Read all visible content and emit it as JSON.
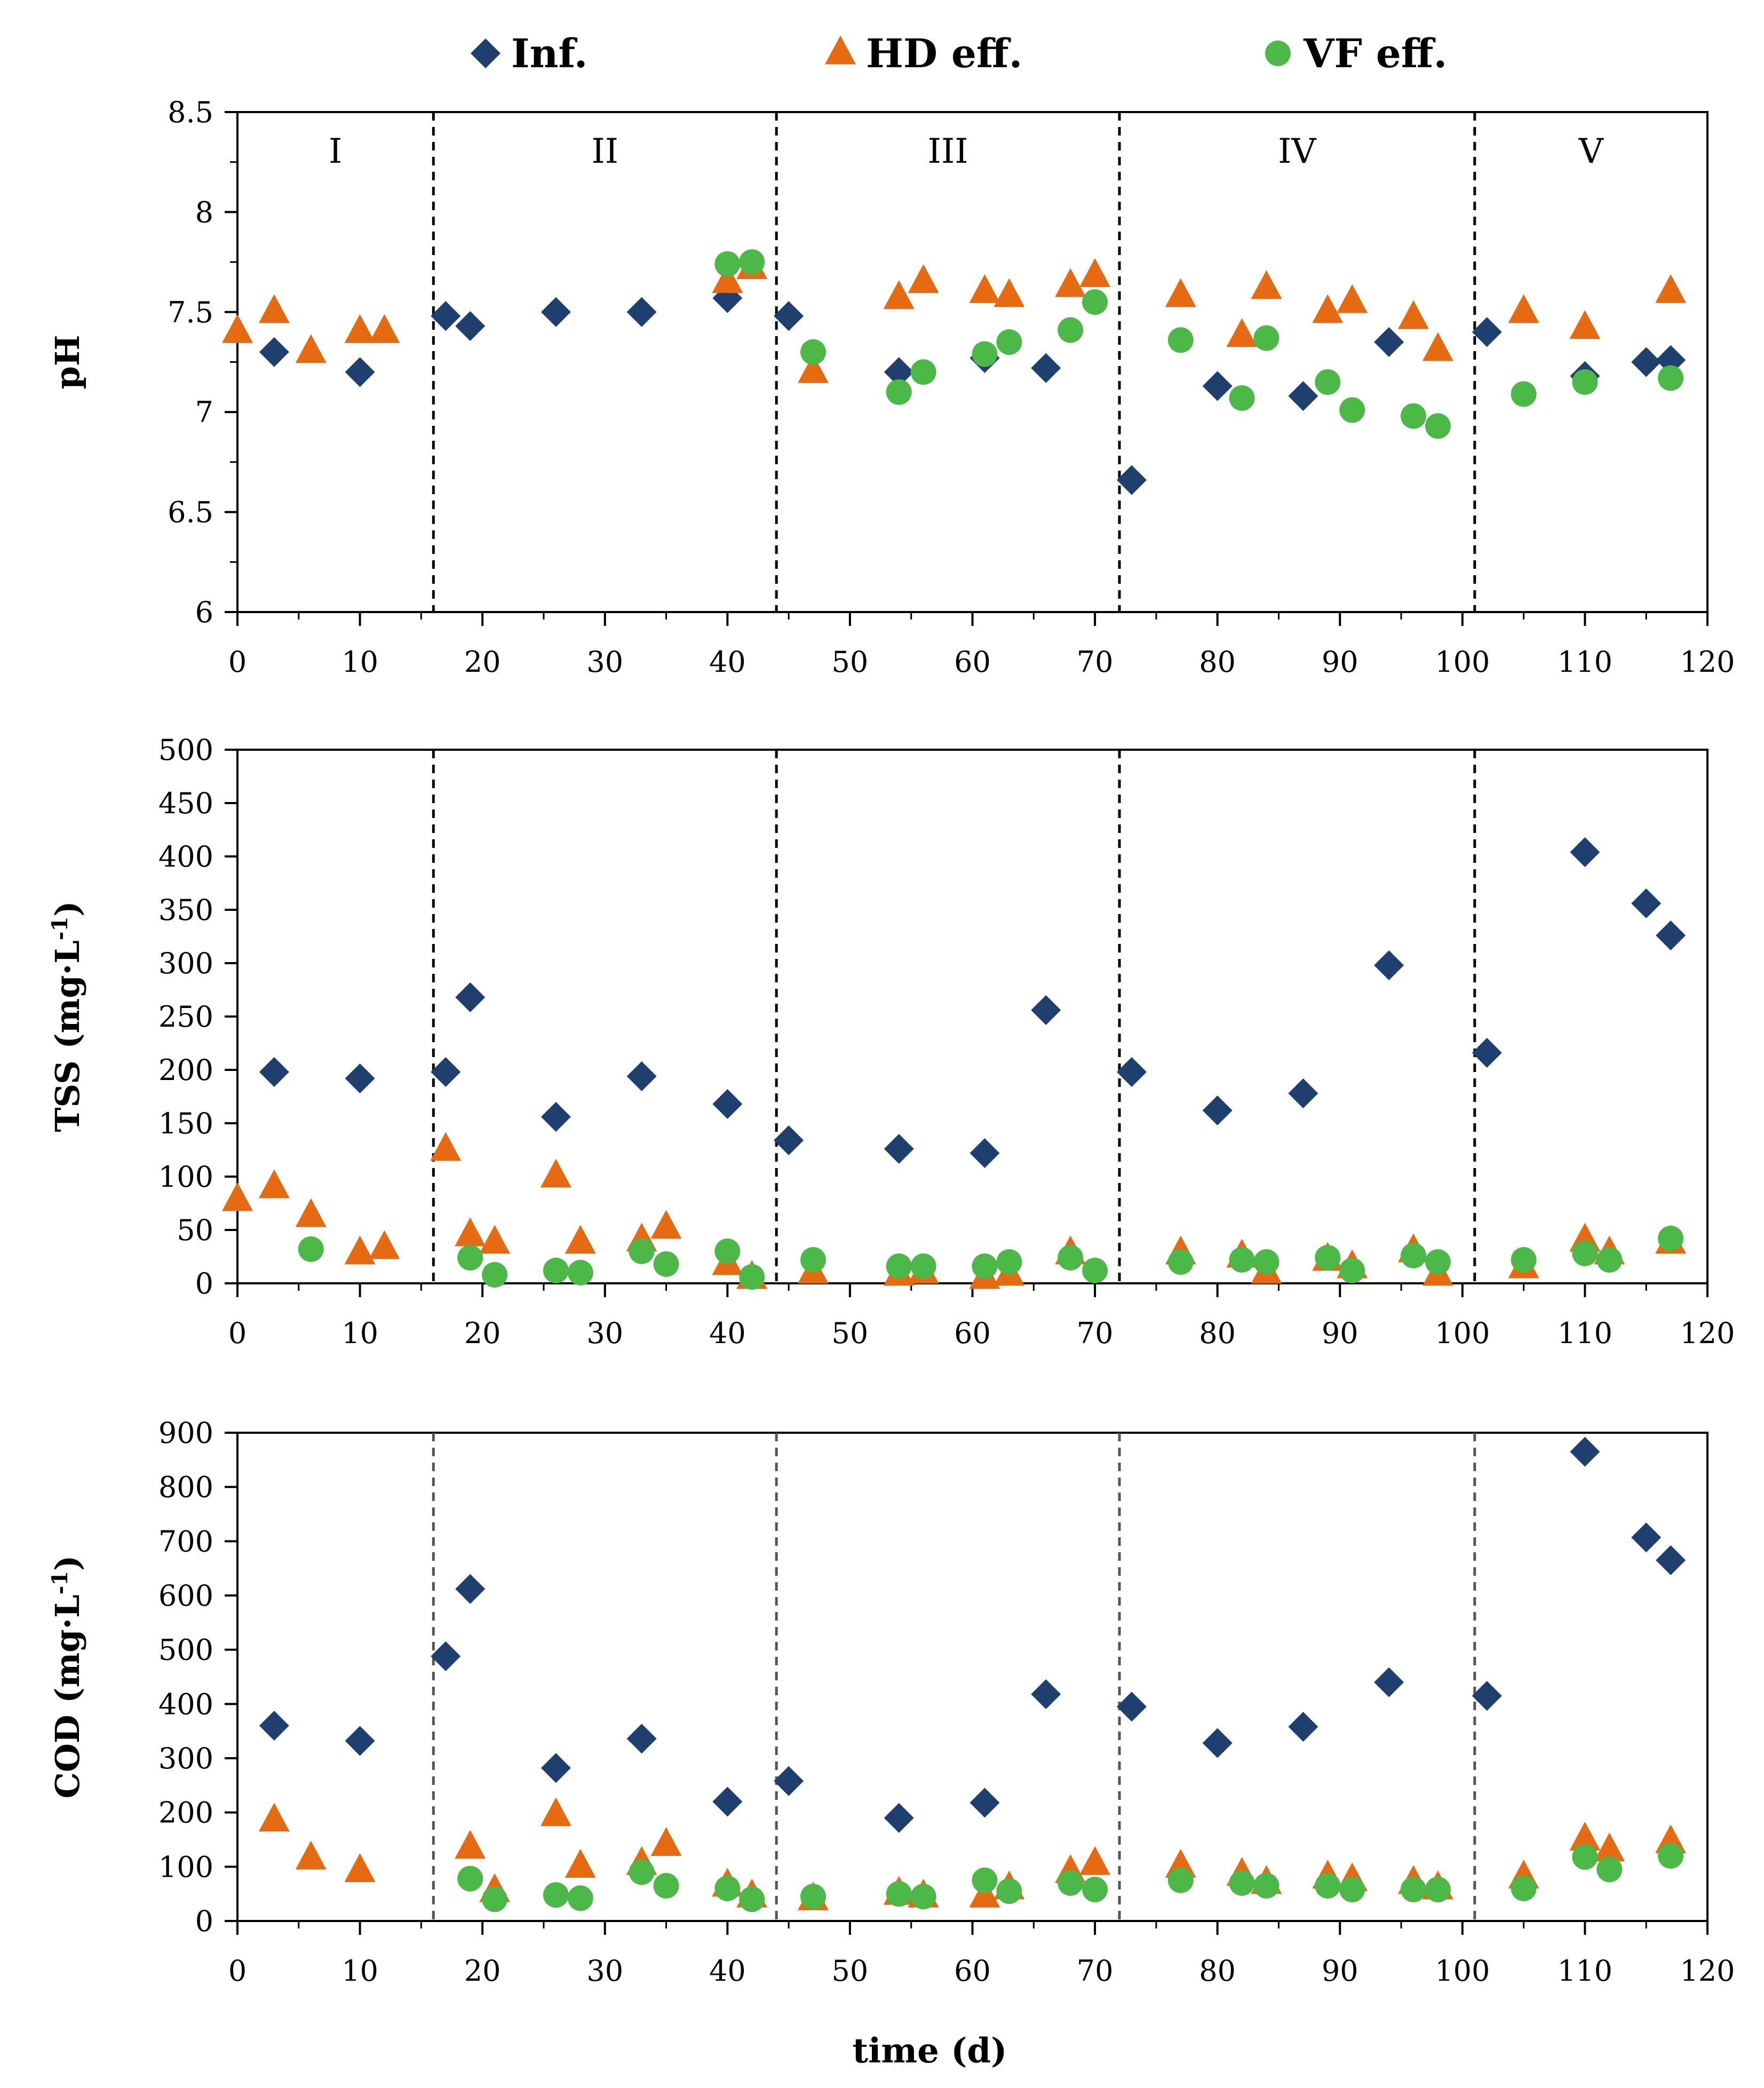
{
  "legend": [
    {
      "key": "inf",
      "label": "Inf.",
      "color": "#1f3f6e",
      "marker": "diamond"
    },
    {
      "key": "hd",
      "label": "HD eff.",
      "color": "#e66a12",
      "marker": "triangle"
    },
    {
      "key": "vf",
      "label": "VF eff.",
      "color": "#4cb848",
      "marker": "circle"
    }
  ],
  "shared_x_label": "time (d)",
  "chart_data": [
    {
      "type": "scatter",
      "ylabel_main": "pH",
      "ylabel_sup": "",
      "ylabel_tail": "",
      "xlim": [
        0,
        120
      ],
      "ylim": [
        6,
        8.5
      ],
      "xticks": [
        "0",
        "10",
        "20",
        "30",
        "40",
        "50",
        "60",
        "70",
        "80",
        "90",
        "100",
        "110",
        "120"
      ],
      "yticks": [
        "6",
        "6.5",
        "7",
        "7.5",
        "8",
        "8.5"
      ],
      "phase_boundaries": [
        16,
        44,
        72,
        101
      ],
      "phase_labels": [
        "I",
        "II",
        "III",
        "IV",
        "V"
      ],
      "series": [
        {
          "name": "Inf.",
          "x": [
            3,
            10,
            17,
            19,
            26,
            33,
            40,
            45,
            54,
            61,
            66,
            73,
            80,
            87,
            94,
            102,
            110,
            115,
            117
          ],
          "y": [
            7.3,
            7.2,
            7.48,
            7.43,
            7.5,
            7.5,
            7.57,
            7.48,
            7.2,
            7.27,
            7.22,
            6.66,
            7.13,
            7.08,
            7.35,
            7.4,
            7.18,
            7.25,
            7.26
          ]
        },
        {
          "name": "HD eff.",
          "x": [
            0,
            3,
            6,
            10,
            12,
            40,
            42,
            47,
            54,
            56,
            61,
            63,
            68,
            70,
            77,
            82,
            84,
            89,
            91,
            96,
            98,
            105,
            110,
            117
          ],
          "y": [
            7.4,
            7.5,
            7.3,
            7.4,
            7.4,
            7.65,
            7.72,
            7.2,
            7.57,
            7.65,
            7.6,
            7.58,
            7.63,
            7.68,
            7.58,
            7.38,
            7.62,
            7.5,
            7.55,
            7.47,
            7.31,
            7.5,
            7.42,
            7.6
          ]
        },
        {
          "name": "VF eff.",
          "x": [
            40,
            42,
            47,
            54,
            56,
            61,
            63,
            68,
            70,
            77,
            82,
            84,
            89,
            91,
            96,
            98,
            105,
            110,
            117
          ],
          "y": [
            7.74,
            7.75,
            7.3,
            7.1,
            7.2,
            7.29,
            7.35,
            7.41,
            7.55,
            7.36,
            7.07,
            7.37,
            7.15,
            7.01,
            6.98,
            6.93,
            7.09,
            7.15,
            7.17
          ]
        }
      ]
    },
    {
      "type": "scatter",
      "ylabel_main": "TSS (mg·L",
      "ylabel_sup": "-1",
      "ylabel_tail": ")",
      "xlim": [
        0,
        120
      ],
      "ylim": [
        0,
        500
      ],
      "xticks": [
        "0",
        "10",
        "20",
        "30",
        "40",
        "50",
        "60",
        "70",
        "80",
        "90",
        "100",
        "110",
        "120"
      ],
      "yticks": [
        "0",
        "50",
        "100",
        "150",
        "200",
        "250",
        "300",
        "350",
        "400",
        "450",
        "500"
      ],
      "phase_boundaries": [
        16,
        44,
        72,
        101
      ],
      "phase_labels": [],
      "series": [
        {
          "name": "Inf.",
          "x": [
            3,
            10,
            17,
            19,
            26,
            33,
            40,
            45,
            54,
            61,
            66,
            73,
            80,
            87,
            94,
            102,
            110,
            115,
            117
          ],
          "y": [
            198,
            192,
            198,
            268,
            156,
            194,
            168,
            134,
            126,
            122,
            256,
            198,
            162,
            178,
            298,
            216,
            404,
            356,
            326
          ]
        },
        {
          "name": "HD eff.",
          "x": [
            0,
            3,
            6,
            10,
            12,
            17,
            19,
            21,
            26,
            28,
            33,
            35,
            40,
            42,
            47,
            54,
            56,
            61,
            63,
            68,
            77,
            82,
            84,
            89,
            91,
            96,
            98,
            105,
            110,
            112,
            117
          ],
          "y": [
            78,
            90,
            63,
            28,
            33,
            125,
            45,
            38,
            100,
            38,
            40,
            52,
            18,
            5,
            10,
            8,
            10,
            5,
            8,
            28,
            28,
            25,
            10,
            22,
            15,
            30,
            8,
            15,
            40,
            28,
            38
          ]
        },
        {
          "name": "VF eff.",
          "x": [
            6,
            19,
            21,
            26,
            28,
            33,
            35,
            40,
            42,
            47,
            54,
            56,
            61,
            63,
            68,
            70,
            77,
            82,
            84,
            89,
            91,
            96,
            98,
            105,
            110,
            112,
            117
          ],
          "y": [
            32,
            24,
            8,
            12,
            10,
            30,
            18,
            30,
            6,
            22,
            16,
            16,
            16,
            20,
            24,
            12,
            20,
            22,
            20,
            24,
            12,
            26,
            20,
            22,
            28,
            22,
            42
          ]
        }
      ]
    },
    {
      "type": "scatter",
      "ylabel_main": "COD (mg·L",
      "ylabel_sup": "-1",
      "ylabel_tail": ")",
      "xlim": [
        0,
        120
      ],
      "ylim": [
        0,
        900
      ],
      "xticks": [
        "0",
        "10",
        "20",
        "30",
        "40",
        "50",
        "60",
        "70",
        "80",
        "90",
        "100",
        "110",
        "120"
      ],
      "yticks": [
        "0",
        "100",
        "200",
        "300",
        "400",
        "500",
        "600",
        "700",
        "800",
        "900"
      ],
      "phase_boundaries": [
        16,
        44,
        72,
        101
      ],
      "phase_labels": [],
      "series": [
        {
          "name": "Inf.",
          "x": [
            3,
            10,
            17,
            19,
            26,
            33,
            40,
            45,
            54,
            61,
            66,
            73,
            80,
            87,
            94,
            102,
            110,
            115,
            117
          ],
          "y": [
            360,
            332,
            488,
            612,
            282,
            336,
            220,
            258,
            190,
            218,
            418,
            395,
            328,
            358,
            440,
            415,
            865,
            707,
            665
          ]
        },
        {
          "name": "HD eff.",
          "x": [
            3,
            6,
            10,
            19,
            21,
            26,
            28,
            33,
            35,
            40,
            42,
            47,
            54,
            56,
            61,
            63,
            68,
            70,
            77,
            82,
            84,
            89,
            91,
            96,
            98,
            105,
            110,
            112,
            117
          ],
          "y": [
            185,
            115,
            92,
            135,
            55,
            195,
            100,
            105,
            140,
            65,
            45,
            40,
            50,
            45,
            45,
            60,
            90,
            105,
            100,
            85,
            70,
            80,
            75,
            70,
            60,
            80,
            150,
            130,
            145
          ]
        },
        {
          "name": "VF eff.",
          "x": [
            19,
            21,
            26,
            28,
            33,
            35,
            40,
            42,
            47,
            54,
            56,
            61,
            63,
            68,
            70,
            77,
            82,
            84,
            89,
            91,
            96,
            98,
            105,
            110,
            112,
            117
          ],
          "y": [
            78,
            40,
            48,
            42,
            90,
            65,
            60,
            40,
            45,
            50,
            45,
            75,
            55,
            70,
            58,
            75,
            70,
            65,
            65,
            58,
            58,
            58,
            60,
            118,
            95,
            120
          ]
        }
      ]
    }
  ]
}
